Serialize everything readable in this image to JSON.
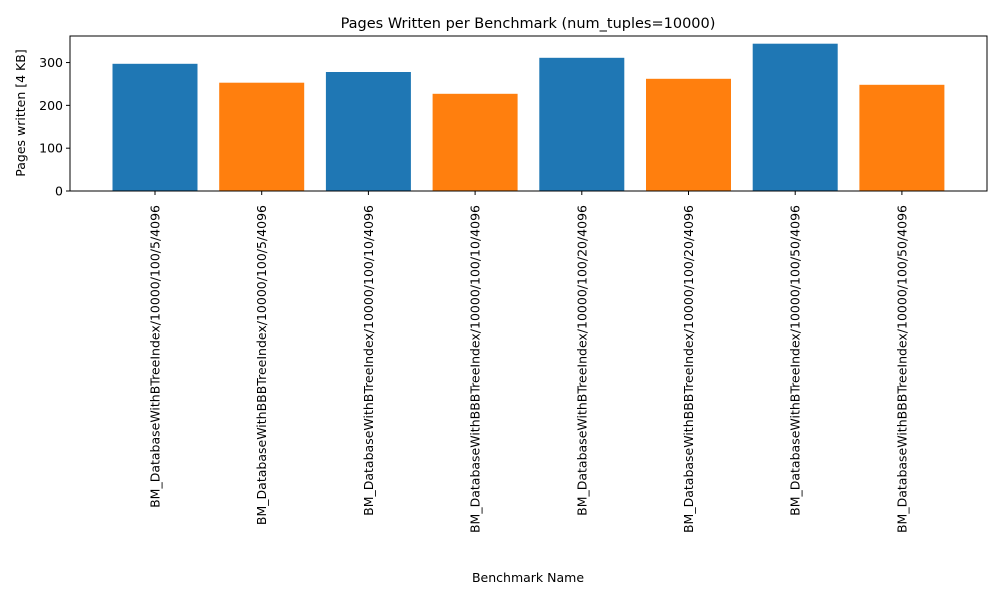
{
  "chart_data": {
    "type": "bar",
    "title": "Pages Written per Benchmark (num_tuples=10000)",
    "xlabel": "Benchmark Name",
    "ylabel": "Pages written [4 KB]",
    "ylim": [
      0,
      362
    ],
    "yticks": [
      0,
      100,
      200,
      300
    ],
    "grid": false,
    "legend": "none",
    "categories": [
      "BM_DatabaseWithBTreeIndex/10000/100/5/4096",
      "BM_DatabaseWithBBBTreeIndex/10000/100/5/4096",
      "BM_DatabaseWithBTreeIndex/10000/100/10/4096",
      "BM_DatabaseWithBBBTreeIndex/10000/100/10/4096",
      "BM_DatabaseWithBTreeIndex/10000/100/20/4096",
      "BM_DatabaseWithBBBTreeIndex/10000/100/20/4096",
      "BM_DatabaseWithBTreeIndex/10000/100/50/4096",
      "BM_DatabaseWithBBBTreeIndex/10000/100/50/4096"
    ],
    "values": [
      297,
      253,
      278,
      227,
      311,
      262,
      344,
      248
    ],
    "colors": [
      "#1f77b4",
      "#ff7f0e",
      "#1f77b4",
      "#ff7f0e",
      "#1f77b4",
      "#ff7f0e",
      "#1f77b4",
      "#ff7f0e"
    ]
  }
}
